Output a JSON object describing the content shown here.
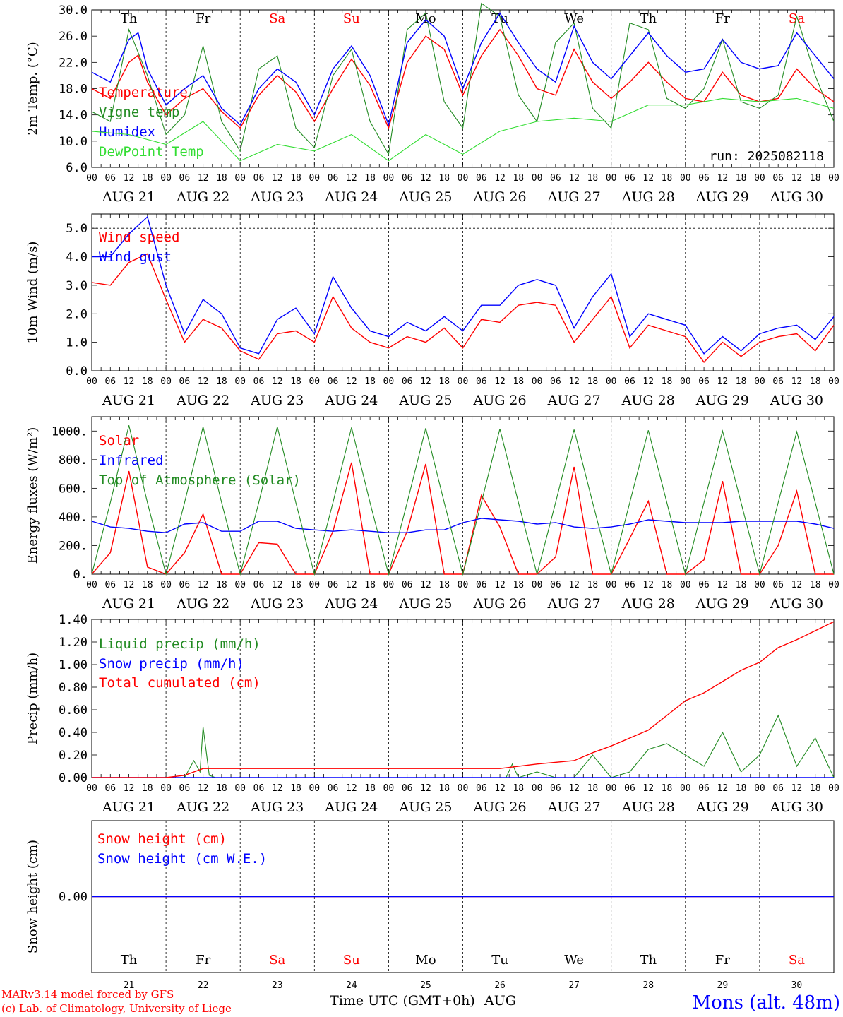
{
  "colors": {
    "red": "#ff0000",
    "green": "#228b22",
    "blue": "#0000ff",
    "lightgreen": "#33dd33",
    "black": "#000000"
  },
  "time_axis": {
    "hour_labels": [
      "00",
      "06",
      "12",
      "18"
    ],
    "end_label": "00",
    "day_labels": [
      "AUG 21",
      "AUG 22",
      "AUG 23",
      "AUG 24",
      "AUG 25",
      "AUG 26",
      "AUG 27",
      "AUG 28",
      "AUG 29",
      "AUG 30"
    ],
    "weekday_labels": [
      "Th",
      "Fr",
      "Sa",
      "Su",
      "Mo",
      "Tu",
      "We",
      "Th",
      "Fr",
      "Sa"
    ],
    "weekend_index": [
      2,
      3,
      9
    ],
    "day_numbers": [
      "21",
      "22",
      "23",
      "24",
      "25",
      "26",
      "27",
      "28",
      "29",
      "30"
    ],
    "month": "AUG",
    "xlabel": "Time UTC (GMT+0h)"
  },
  "footer": {
    "credit_line1": "MARv3.14 model forced by GFS",
    "credit_line2": "(c) Lab. of Climatology, University of Liege",
    "station": "Mons (alt. 48m)"
  },
  "chart_data": [
    {
      "type": "line",
      "ylabel": "2m Temp. (°C)",
      "yticks": [
        "6.0",
        "10.0",
        "14.0",
        "18.0",
        "22.0",
        "26.0",
        "30.0"
      ],
      "ylim": [
        6,
        30
      ],
      "run_label": "run: 2025082118",
      "x_unit": "hours since AUG 21 00 UTC",
      "series": [
        {
          "name": "Temperature",
          "color": "red",
          "x": [
            0,
            6,
            12,
            15,
            18,
            24,
            30,
            36,
            42,
            48,
            54,
            60,
            66,
            72,
            78,
            84,
            90,
            96,
            102,
            108,
            114,
            120,
            126,
            132,
            138,
            144,
            150,
            156,
            162,
            168,
            174,
            180,
            186,
            192,
            198,
            204,
            210,
            216,
            222,
            228,
            234,
            240
          ],
          "y": [
            18.0,
            16.5,
            22.0,
            23.1,
            19.0,
            14.0,
            16.5,
            18.0,
            14.5,
            12.0,
            17.0,
            20.0,
            17.5,
            13.0,
            18.0,
            22.5,
            18.5,
            12.0,
            22.0,
            26.0,
            24.0,
            17.0,
            23.0,
            27.0,
            23.0,
            18.0,
            17.0,
            24.0,
            19.0,
            16.5,
            19.0,
            22.0,
            19.0,
            16.5,
            16.0,
            20.5,
            17.0,
            16.0,
            16.5,
            21.0,
            18.0,
            16.0
          ]
        },
        {
          "name": "Vigne temp",
          "color": "green",
          "x": [
            0,
            6,
            12,
            18,
            24,
            30,
            36,
            42,
            48,
            54,
            60,
            66,
            72,
            78,
            84,
            90,
            96,
            102,
            108,
            114,
            120,
            126,
            132,
            138,
            144,
            150,
            156,
            162,
            168,
            174,
            180,
            186,
            192,
            198,
            204,
            210,
            216,
            222,
            228,
            234,
            240
          ],
          "y": [
            14.5,
            13.0,
            27.0,
            20.0,
            11.0,
            14.0,
            24.5,
            13.0,
            8.5,
            21.0,
            23.0,
            12.0,
            9.0,
            20.0,
            24.0,
            13.0,
            8.0,
            27.0,
            29.5,
            16.0,
            12.0,
            31.0,
            29.0,
            17.0,
            13.0,
            25.0,
            28.0,
            15.0,
            12.0,
            28.0,
            27.0,
            16.5,
            15.0,
            18.0,
            25.5,
            16.0,
            15.0,
            17.0,
            29.0,
            20.0,
            13.0
          ]
        },
        {
          "name": "Humidex",
          "color": "blue",
          "x": [
            0,
            6,
            12,
            15,
            18,
            24,
            30,
            36,
            42,
            48,
            54,
            60,
            66,
            72,
            78,
            84,
            90,
            96,
            102,
            108,
            114,
            120,
            126,
            132,
            138,
            144,
            150,
            156,
            162,
            168,
            174,
            180,
            186,
            192,
            198,
            204,
            210,
            216,
            222,
            228,
            234,
            240
          ],
          "y": [
            20.5,
            19.0,
            25.5,
            26.5,
            21.0,
            15.5,
            18.0,
            20.0,
            15.0,
            12.5,
            18.0,
            21.0,
            19.0,
            14.0,
            21.0,
            24.5,
            20.0,
            12.5,
            25.0,
            28.5,
            26.0,
            18.0,
            25.0,
            29.5,
            25.0,
            21.0,
            19.0,
            27.5,
            22.0,
            19.5,
            23.0,
            26.5,
            23.0,
            20.5,
            21.0,
            25.5,
            22.0,
            21.0,
            21.5,
            26.5,
            23.0,
            19.5
          ]
        },
        {
          "name": "DewPoint Temp",
          "color": "lightgreen",
          "x": [
            0,
            12,
            24,
            36,
            48,
            60,
            72,
            84,
            96,
            108,
            120,
            132,
            144,
            156,
            168,
            180,
            192,
            204,
            216,
            228,
            240
          ],
          "y": [
            11.5,
            11.0,
            9.5,
            13.0,
            7.0,
            9.5,
            8.5,
            11.0,
            7.0,
            11.0,
            8.0,
            11.5,
            13.0,
            13.5,
            13.0,
            15.5,
            15.5,
            16.5,
            16.0,
            16.5,
            15.0
          ]
        }
      ]
    },
    {
      "type": "line",
      "ylabel": "10m Wind (m/s)",
      "yticks": [
        "0.0",
        "1.0",
        "2.0",
        "3.0",
        "4.0",
        "5.0"
      ],
      "ylim": [
        0,
        5.5
      ],
      "series": [
        {
          "name": "Wind speed",
          "color": "red",
          "x": [
            0,
            6,
            12,
            18,
            24,
            30,
            36,
            42,
            48,
            54,
            60,
            66,
            72,
            78,
            84,
            90,
            96,
            102,
            108,
            114,
            120,
            126,
            132,
            138,
            144,
            150,
            156,
            162,
            168,
            174,
            180,
            186,
            192,
            198,
            204,
            210,
            216,
            222,
            228,
            234,
            240
          ],
          "y": [
            3.1,
            3.0,
            3.8,
            4.1,
            2.5,
            1.0,
            1.8,
            1.5,
            0.7,
            0.4,
            1.3,
            1.4,
            1.0,
            2.6,
            1.5,
            1.0,
            0.8,
            1.2,
            1.0,
            1.5,
            0.8,
            1.8,
            1.7,
            2.3,
            2.4,
            2.3,
            1.0,
            1.8,
            2.6,
            0.8,
            1.6,
            1.4,
            1.2,
            0.3,
            1.0,
            0.5,
            1.0,
            1.2,
            1.3,
            0.7,
            1.6
          ]
        },
        {
          "name": "Wind gust",
          "color": "blue",
          "x": [
            0,
            6,
            12,
            18,
            24,
            30,
            36,
            42,
            48,
            54,
            60,
            66,
            72,
            78,
            84,
            90,
            96,
            102,
            108,
            114,
            120,
            126,
            132,
            138,
            144,
            150,
            156,
            162,
            168,
            174,
            180,
            186,
            192,
            198,
            204,
            210,
            216,
            222,
            228,
            234,
            240
          ],
          "y": [
            4.0,
            4.0,
            4.8,
            5.4,
            3.0,
            1.3,
            2.5,
            2.0,
            0.8,
            0.6,
            1.8,
            2.2,
            1.3,
            3.3,
            2.2,
            1.4,
            1.2,
            1.7,
            1.4,
            1.9,
            1.4,
            2.3,
            2.3,
            3.0,
            3.2,
            3.0,
            1.5,
            2.6,
            3.4,
            1.2,
            2.0,
            1.8,
            1.6,
            0.6,
            1.2,
            0.7,
            1.3,
            1.5,
            1.6,
            1.1,
            1.9
          ]
        }
      ]
    },
    {
      "type": "line",
      "ylabel": "Energy fluxes (W/m²)",
      "yticks": [
        "0.",
        "200.",
        "400.",
        "600.",
        "800.",
        "1000."
      ],
      "ylim": [
        0,
        1100
      ],
      "series": [
        {
          "name": "Solar",
          "color": "red",
          "x": [
            0,
            6,
            12,
            18,
            24,
            30,
            36,
            42,
            48,
            54,
            60,
            66,
            72,
            78,
            84,
            90,
            96,
            102,
            108,
            114,
            120,
            126,
            132,
            138,
            144,
            150,
            156,
            162,
            168,
            174,
            180,
            186,
            192,
            198,
            204,
            210,
            216,
            222,
            228,
            234,
            240
          ],
          "y": [
            0,
            150,
            720,
            50,
            0,
            150,
            420,
            0,
            0,
            220,
            210,
            0,
            0,
            300,
            780,
            0,
            0,
            300,
            770,
            0,
            0,
            550,
            330,
            0,
            0,
            120,
            750,
            0,
            0,
            250,
            510,
            0,
            0,
            100,
            650,
            0,
            0,
            200,
            580,
            0,
            0
          ]
        },
        {
          "name": "Infrared",
          "color": "blue",
          "x": [
            0,
            6,
            12,
            18,
            24,
            30,
            36,
            42,
            48,
            54,
            60,
            66,
            72,
            78,
            84,
            90,
            96,
            102,
            108,
            114,
            120,
            126,
            132,
            138,
            144,
            150,
            156,
            162,
            168,
            174,
            180,
            186,
            192,
            198,
            204,
            210,
            216,
            222,
            228,
            234,
            240
          ],
          "y": [
            370,
            330,
            320,
            300,
            290,
            350,
            360,
            300,
            300,
            370,
            370,
            320,
            310,
            300,
            310,
            300,
            290,
            290,
            310,
            310,
            360,
            390,
            380,
            370,
            350,
            360,
            330,
            320,
            330,
            350,
            380,
            370,
            360,
            360,
            360,
            370,
            370,
            370,
            370,
            350,
            320
          ]
        },
        {
          "name": "Top of Atmosphere (Solar)",
          "color": "green",
          "x": [
            0,
            6,
            12,
            18,
            24,
            30,
            36,
            42,
            48,
            54,
            60,
            66,
            72,
            78,
            84,
            90,
            96,
            102,
            108,
            114,
            120,
            126,
            132,
            138,
            144,
            150,
            156,
            162,
            168,
            174,
            180,
            186,
            192,
            198,
            204,
            210,
            216,
            222,
            228,
            234,
            240
          ],
          "y": [
            0,
            500,
            1040,
            500,
            0,
            500,
            1030,
            500,
            0,
            500,
            1030,
            500,
            0,
            500,
            1025,
            500,
            0,
            500,
            1020,
            500,
            0,
            500,
            1015,
            500,
            0,
            500,
            1010,
            500,
            0,
            500,
            1005,
            500,
            0,
            500,
            1000,
            500,
            0,
            500,
            995,
            500,
            0
          ]
        }
      ]
    },
    {
      "type": "line",
      "ylabel": "Precip (mm/h)",
      "yticks": [
        "0.00",
        "0.20",
        "0.40",
        "0.60",
        "0.80",
        "1.00",
        "1.20",
        "1.40"
      ],
      "ylim": [
        0,
        1.4
      ],
      "series": [
        {
          "name": "Liquid precip (mm/h)",
          "color": "green",
          "x": [
            0,
            24,
            30,
            33,
            35,
            36,
            38,
            40,
            48,
            72,
            96,
            120,
            134,
            136,
            138,
            144,
            150,
            156,
            162,
            168,
            174,
            180,
            186,
            192,
            198,
            204,
            210,
            216,
            222,
            228,
            234,
            240
          ],
          "y": [
            0,
            0,
            0,
            0.15,
            0.05,
            0.45,
            0.02,
            0,
            0,
            0,
            0,
            0,
            0,
            0.12,
            0,
            0.05,
            0,
            0,
            0.2,
            0,
            0.05,
            0.25,
            0.3,
            0.2,
            0.1,
            0.4,
            0.05,
            0.2,
            0.55,
            0.1,
            0.35,
            0
          ]
        },
        {
          "name": "Snow precip (mm/h)",
          "color": "blue",
          "x": [
            0,
            240
          ],
          "y": [
            0,
            0
          ]
        },
        {
          "name": "Total cumulated (cm)",
          "color": "red",
          "x": [
            0,
            24,
            30,
            36,
            48,
            72,
            96,
            120,
            132,
            144,
            156,
            162,
            168,
            180,
            186,
            192,
            198,
            204,
            210,
            216,
            222,
            228,
            234,
            240
          ],
          "y": [
            0,
            0,
            0.02,
            0.08,
            0.08,
            0.08,
            0.08,
            0.08,
            0.08,
            0.12,
            0.15,
            0.22,
            0.28,
            0.42,
            0.55,
            0.68,
            0.75,
            0.85,
            0.95,
            1.02,
            1.15,
            1.22,
            1.3,
            1.38
          ]
        }
      ]
    },
    {
      "type": "line",
      "ylabel": "Snow height (cm)",
      "yticks": [
        "0.00"
      ],
      "ylim": [
        -1,
        1
      ],
      "series": [
        {
          "name": "Snow height (cm)",
          "color": "red",
          "x": [
            0,
            240
          ],
          "y": [
            0,
            0
          ]
        },
        {
          "name": "Snow height (cm W.E.)",
          "color": "blue",
          "x": [
            0,
            240
          ],
          "y": [
            0,
            0
          ]
        }
      ]
    }
  ]
}
